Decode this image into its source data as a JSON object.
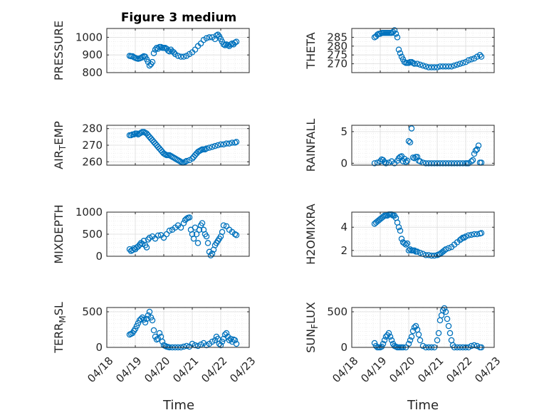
{
  "title": "Figure 3 medium",
  "xlabel": "Time",
  "x_ticks": [
    "04/18",
    "04/19",
    "04/20",
    "04/21",
    "04/22",
    "04/23"
  ],
  "marker_color": "#0072BD",
  "chart_data": [
    {
      "type": "scatter",
      "ylabel": "PRESSURE",
      "xlim": [
        0,
        5
      ],
      "ylim": [
        800,
        1050
      ],
      "yticks": [
        800,
        900,
        1000
      ],
      "ytick_labels": [
        "800",
        "900",
        "1000"
      ],
      "grid": true,
      "x": [
        0.8,
        0.85,
        0.9,
        0.95,
        1.0,
        1.05,
        1.1,
        1.15,
        1.2,
        1.25,
        1.3,
        1.35,
        1.4,
        1.45,
        1.5,
        1.55,
        1.6,
        1.65,
        1.7,
        1.75,
        1.8,
        1.85,
        1.9,
        1.95,
        2.0,
        2.05,
        2.1,
        2.15,
        2.2,
        2.25,
        2.3,
        2.35,
        2.4,
        2.5,
        2.6,
        2.7,
        2.8,
        2.9,
        3.0,
        3.1,
        3.2,
        3.3,
        3.4,
        3.5,
        3.6,
        3.7,
        3.8,
        3.85,
        3.9,
        3.95,
        4.0,
        4.05,
        4.1,
        4.15,
        4.2,
        4.25,
        4.3,
        4.35,
        4.4,
        4.45,
        4.5,
        4.55
      ],
      "y": [
        895,
        893,
        893,
        887,
        883,
        880,
        878,
        880,
        883,
        888,
        893,
        890,
        875,
        860,
        840,
        848,
        860,
        910,
        930,
        940,
        935,
        945,
        945,
        940,
        940,
        940,
        935,
        925,
        920,
        930,
        920,
        915,
        905,
        895,
        890,
        890,
        895,
        905,
        915,
        930,
        950,
        965,
        985,
        995,
        1000,
        1000,
        990,
        1010,
        1015,
        1005,
        990,
        975,
        960,
        955,
        960,
        955,
        950,
        960,
        965,
        960,
        970,
        975
      ]
    },
    {
      "type": "scatter",
      "ylabel": "THETA",
      "xlim": [
        0,
        5
      ],
      "ylim": [
        265,
        290
      ],
      "yticks": [
        270,
        275,
        280,
        285
      ],
      "ytick_labels": [
        "270",
        "275",
        "280",
        "285"
      ],
      "grid": true,
      "x": [
        0.8,
        0.85,
        0.9,
        0.95,
        1.0,
        1.05,
        1.1,
        1.15,
        1.2,
        1.25,
        1.3,
        1.35,
        1.4,
        1.45,
        1.5,
        1.55,
        1.6,
        1.65,
        1.7,
        1.75,
        1.8,
        1.85,
        1.9,
        1.95,
        2.0,
        2.05,
        2.1,
        2.15,
        2.2,
        2.3,
        2.4,
        2.5,
        2.6,
        2.7,
        2.8,
        2.9,
        3.0,
        3.1,
        3.2,
        3.3,
        3.4,
        3.5,
        3.6,
        3.7,
        3.8,
        3.9,
        4.0,
        4.1,
        4.2,
        4.3,
        4.4,
        4.5,
        4.55
      ],
      "y": [
        285,
        285.5,
        286.5,
        287,
        287,
        287.5,
        287.5,
        287.5,
        287.5,
        287.5,
        287.5,
        287.5,
        287.5,
        288,
        289,
        287,
        285,
        278,
        276,
        274,
        272.5,
        271,
        270.5,
        270.5,
        270.5,
        271,
        271,
        270.5,
        270,
        270,
        269.5,
        269,
        268.5,
        268,
        268,
        268,
        268,
        268.5,
        268.5,
        268.5,
        268.5,
        268.5,
        269,
        269.5,
        270,
        270.5,
        271,
        272,
        272.5,
        273,
        274,
        275,
        274
      ]
    },
    {
      "type": "scatter",
      "ylabel": "AIR_TEMP",
      "xlim": [
        0,
        5
      ],
      "ylim": [
        258,
        282
      ],
      "yticks": [
        260,
        270,
        280
      ],
      "ytick_labels": [
        "260",
        "270",
        "280"
      ],
      "grid": true,
      "x": [
        0.8,
        0.85,
        0.9,
        0.95,
        1.0,
        1.05,
        1.1,
        1.15,
        1.2,
        1.25,
        1.3,
        1.35,
        1.4,
        1.45,
        1.5,
        1.55,
        1.6,
        1.65,
        1.7,
        1.75,
        1.8,
        1.85,
        1.9,
        1.95,
        2.0,
        2.05,
        2.1,
        2.15,
        2.2,
        2.25,
        2.3,
        2.35,
        2.4,
        2.45,
        2.5,
        2.55,
        2.6,
        2.65,
        2.7,
        2.75,
        2.8,
        2.9,
        3.0,
        3.05,
        3.1,
        3.15,
        3.2,
        3.25,
        3.3,
        3.35,
        3.4,
        3.45,
        3.5,
        3.6,
        3.7,
        3.8,
        3.9,
        4.0,
        4.1,
        4.2,
        4.3,
        4.4,
        4.5,
        4.55
      ],
      "y": [
        276,
        276,
        276.5,
        276.5,
        277,
        277,
        276.5,
        277,
        277.5,
        278,
        278,
        277.5,
        277,
        276,
        275,
        274,
        273,
        272,
        271,
        270,
        269,
        268,
        267,
        266,
        265,
        264.5,
        264,
        264,
        264,
        263.5,
        263,
        262.5,
        262,
        261.5,
        261,
        260.5,
        260,
        259.5,
        259.5,
        260,
        260.5,
        261,
        262,
        263,
        264,
        265,
        266,
        266.5,
        267,
        267.5,
        267.5,
        267.5,
        268,
        268.5,
        269,
        269.5,
        270,
        270.5,
        270.5,
        271,
        271,
        271.5,
        271.5,
        272
      ]
    },
    {
      "type": "scatter",
      "ylabel": "RAINFALL",
      "xlim": [
        0,
        5
      ],
      "ylim": [
        -0.3,
        6
      ],
      "yticks": [
        0,
        5
      ],
      "ytick_labels": [
        "0",
        "5"
      ],
      "grid": true,
      "x": [
        0.8,
        0.9,
        1.0,
        1.05,
        1.1,
        1.15,
        1.2,
        1.3,
        1.4,
        1.5,
        1.6,
        1.65,
        1.7,
        1.75,
        1.8,
        1.85,
        1.9,
        1.95,
        2.0,
        2.05,
        2.1,
        2.15,
        2.2,
        2.25,
        2.3,
        2.35,
        2.4,
        2.5,
        2.6,
        2.7,
        2.8,
        2.9,
        3.0,
        3.1,
        3.2,
        3.3,
        3.4,
        3.5,
        3.6,
        3.7,
        3.8,
        3.9,
        4.0,
        4.05,
        4.1,
        4.2,
        4.25,
        4.3,
        4.35,
        4.4,
        4.45,
        4.5,
        4.55
      ],
      "y": [
        0,
        0.1,
        0.3,
        0.6,
        0.5,
        0.2,
        0,
        0.1,
        0.3,
        0,
        0.4,
        0.8,
        1.0,
        1.1,
        0.3,
        0.7,
        0.2,
        0.4,
        3.5,
        3.3,
        5.5,
        0.9,
        0.8,
        1.0,
        1.0,
        0.4,
        0.3,
        0.1,
        0,
        0,
        0,
        0,
        0,
        0,
        0,
        0,
        0,
        0,
        0,
        0,
        0,
        0,
        0,
        0,
        0,
        0.3,
        0.5,
        1.5,
        2.0,
        2.2,
        2.8,
        0.1,
        0.1
      ]
    },
    {
      "type": "scatter",
      "ylabel": "MIXDEPTH",
      "xlim": [
        0,
        5
      ],
      "ylim": [
        0,
        1000
      ],
      "yticks": [
        0,
        500,
        1000
      ],
      "ytick_labels": [
        "0",
        "500",
        "1000"
      ],
      "grid": true,
      "x": [
        0.8,
        0.85,
        0.9,
        0.95,
        1.0,
        1.05,
        1.1,
        1.15,
        1.2,
        1.25,
        1.3,
        1.35,
        1.4,
        1.45,
        1.5,
        1.6,
        1.7,
        1.8,
        1.9,
        2.0,
        2.1,
        2.2,
        2.3,
        2.4,
        2.5,
        2.6,
        2.7,
        2.75,
        2.8,
        2.85,
        2.9,
        2.95,
        3.0,
        3.05,
        3.1,
        3.15,
        3.2,
        3.25,
        3.3,
        3.35,
        3.4,
        3.45,
        3.5,
        3.55,
        3.6,
        3.65,
        3.7,
        3.75,
        3.8,
        3.85,
        3.9,
        3.95,
        4.0,
        4.05,
        4.1,
        4.2,
        4.3,
        4.4,
        4.5,
        4.55
      ],
      "y": [
        160,
        120,
        140,
        180,
        160,
        200,
        220,
        260,
        300,
        280,
        350,
        250,
        200,
        380,
        420,
        450,
        400,
        470,
        480,
        420,
        500,
        580,
        600,
        650,
        700,
        650,
        750,
        820,
        850,
        870,
        880,
        600,
        500,
        400,
        650,
        500,
        300,
        600,
        700,
        750,
        600,
        500,
        450,
        300,
        100,
        20,
        60,
        150,
        250,
        300,
        350,
        400,
        450,
        550,
        700,
        680,
        600,
        550,
        500,
        480
      ]
    },
    {
      "type": "scatter",
      "ylabel": "H2OMIXRA",
      "xlim": [
        0,
        5
      ],
      "ylim": [
        1.5,
        5.3
      ],
      "yticks": [
        2,
        4
      ],
      "ytick_labels": [
        "2",
        "4"
      ],
      "grid": true,
      "x": [
        0.8,
        0.85,
        0.9,
        0.95,
        1.0,
        1.05,
        1.1,
        1.15,
        1.2,
        1.25,
        1.3,
        1.35,
        1.4,
        1.45,
        1.5,
        1.55,
        1.6,
        1.65,
        1.7,
        1.75,
        1.8,
        1.85,
        1.9,
        1.95,
        2.0,
        2.05,
        2.1,
        2.15,
        2.2,
        2.25,
        2.3,
        2.4,
        2.5,
        2.6,
        2.7,
        2.8,
        2.9,
        3.0,
        3.05,
        3.1,
        3.15,
        3.2,
        3.25,
        3.3,
        3.4,
        3.5,
        3.6,
        3.7,
        3.8,
        3.85,
        3.9,
        3.95,
        4.0,
        4.1,
        4.2,
        4.3,
        4.4,
        4.5,
        4.55
      ],
      "y": [
        4.3,
        4.4,
        4.5,
        4.6,
        4.7,
        4.8,
        4.9,
        5.0,
        5.0,
        5.0,
        5.1,
        5.1,
        5.1,
        5.0,
        5.0,
        4.8,
        4.4,
        4.0,
        3.7,
        3.0,
        2.7,
        2.6,
        2.5,
        2.6,
        2.0,
        2.1,
        2.0,
        2.0,
        2.0,
        1.9,
        1.9,
        1.8,
        1.7,
        1.6,
        1.6,
        1.55,
        1.55,
        1.6,
        1.65,
        1.7,
        1.8,
        1.9,
        2.0,
        2.1,
        2.2,
        2.3,
        2.5,
        2.7,
        2.9,
        3.0,
        3.1,
        3.1,
        3.2,
        3.3,
        3.35,
        3.4,
        3.4,
        3.45,
        3.5
      ]
    },
    {
      "type": "scatter",
      "ylabel": "TERR_MSL",
      "xlim": [
        0,
        5
      ],
      "ylim": [
        0,
        560
      ],
      "yticks": [
        0,
        500
      ],
      "ytick_labels": [
        "0",
        "500"
      ],
      "grid": true,
      "x": [
        0.8,
        0.85,
        0.9,
        0.95,
        1.0,
        1.05,
        1.1,
        1.15,
        1.2,
        1.25,
        1.3,
        1.35,
        1.4,
        1.45,
        1.5,
        1.55,
        1.6,
        1.65,
        1.7,
        1.75,
        1.8,
        1.85,
        1.9,
        1.95,
        2.0,
        2.05,
        2.1,
        2.15,
        2.2,
        2.3,
        2.4,
        2.5,
        2.6,
        2.7,
        2.8,
        2.9,
        3.0,
        3.1,
        3.2,
        3.3,
        3.4,
        3.5,
        3.6,
        3.7,
        3.8,
        3.85,
        3.9,
        3.95,
        4.0,
        4.05,
        4.1,
        4.15,
        4.2,
        4.25,
        4.3,
        4.35,
        4.4,
        4.45,
        4.5,
        4.55
      ],
      "y": [
        180,
        190,
        200,
        230,
        260,
        300,
        340,
        380,
        400,
        420,
        390,
        350,
        400,
        450,
        500,
        420,
        380,
        240,
        150,
        110,
        120,
        200,
        150,
        80,
        30,
        20,
        10,
        5,
        0,
        0,
        0,
        0,
        0,
        10,
        20,
        10,
        50,
        30,
        20,
        40,
        60,
        30,
        50,
        80,
        100,
        150,
        120,
        50,
        30,
        80,
        120,
        180,
        200,
        150,
        100,
        120,
        80,
        110,
        100,
        50
      ]
    },
    {
      "type": "scatter",
      "ylabel": "SUN_FLUX",
      "xlim": [
        0,
        5
      ],
      "ylim": [
        0,
        560
      ],
      "yticks": [
        0,
        500
      ],
      "ytick_labels": [
        "0",
        "500"
      ],
      "grid": true,
      "x": [
        0.8,
        0.85,
        0.9,
        0.95,
        1.0,
        1.05,
        1.1,
        1.15,
        1.2,
        1.25,
        1.3,
        1.35,
        1.4,
        1.45,
        1.5,
        1.55,
        1.6,
        1.65,
        1.7,
        1.75,
        1.8,
        1.9,
        2.0,
        2.05,
        2.1,
        2.15,
        2.2,
        2.25,
        2.3,
        2.35,
        2.4,
        2.5,
        2.6,
        2.7,
        2.8,
        2.9,
        3.0,
        3.05,
        3.1,
        3.15,
        3.2,
        3.25,
        3.3,
        3.35,
        3.4,
        3.45,
        3.5,
        3.55,
        3.6,
        3.7,
        3.8,
        3.9,
        4.0,
        4.1,
        4.2,
        4.3,
        4.4,
        4.5,
        4.55
      ],
      "y": [
        60,
        20,
        0,
        0,
        0,
        10,
        50,
        100,
        150,
        170,
        200,
        150,
        100,
        50,
        20,
        10,
        0,
        0,
        0,
        0,
        0,
        0,
        50,
        100,
        150,
        230,
        280,
        300,
        250,
        180,
        100,
        20,
        0,
        0,
        0,
        0,
        100,
        200,
        380,
        450,
        520,
        550,
        500,
        400,
        300,
        200,
        100,
        30,
        0,
        0,
        0,
        0,
        0,
        0,
        20,
        30,
        20,
        0,
        0
      ]
    }
  ]
}
